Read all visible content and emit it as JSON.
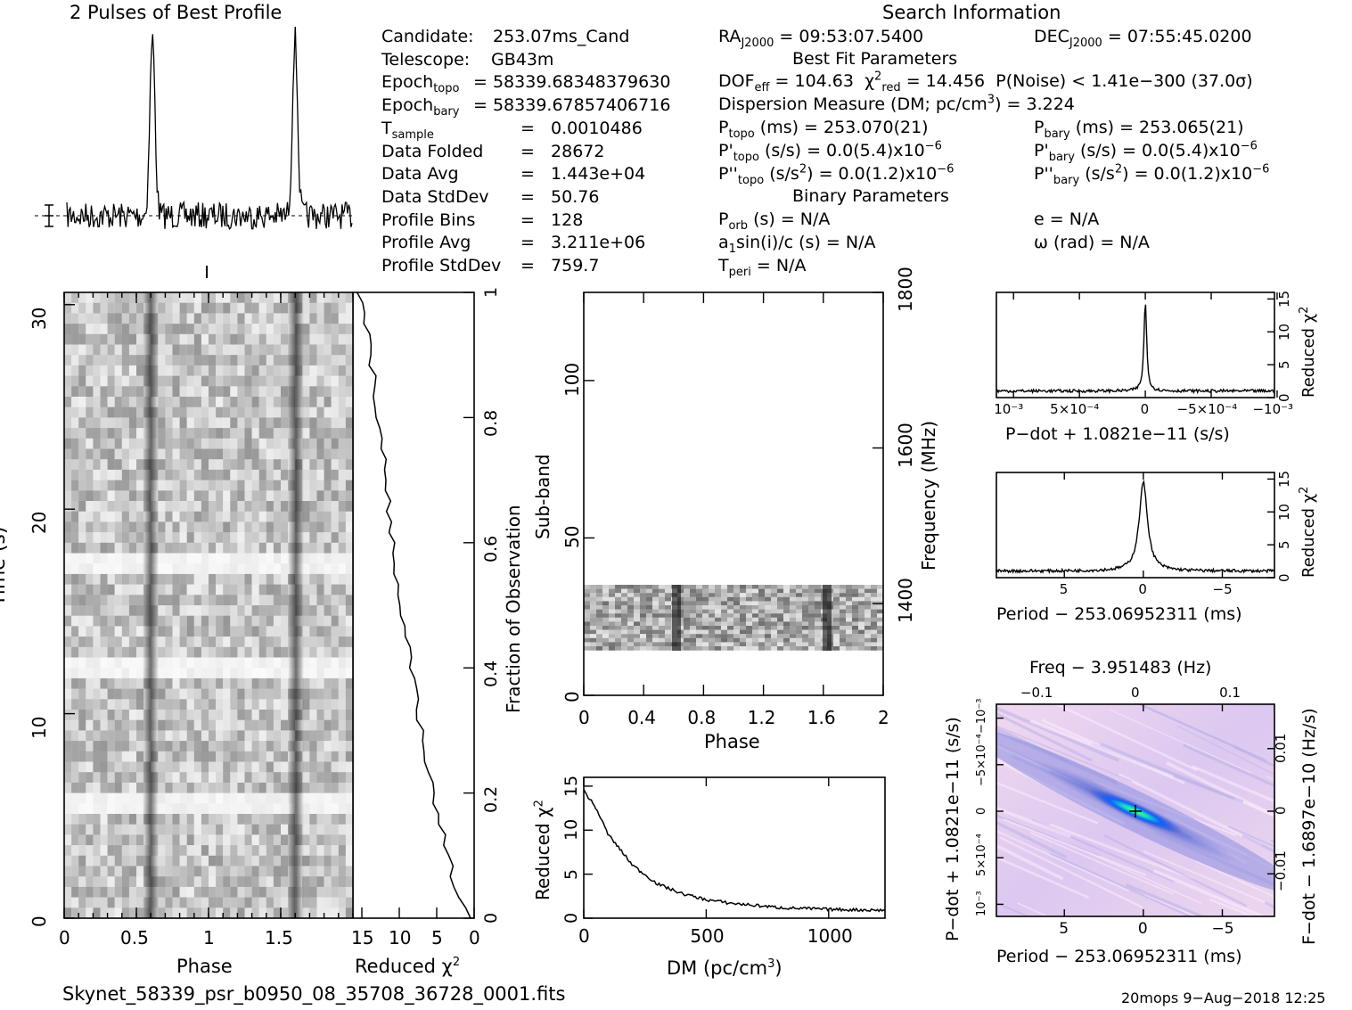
{
  "profile": {
    "title": "2 Pulses of Best Profile"
  },
  "search_info": {
    "title": "Search Information",
    "col1": [
      {
        "label": "Candidate:",
        "value": "253.07ms_Cand"
      },
      {
        "label": "Telescope:",
        "value": "GB43m"
      },
      {
        "label": "Epoch",
        "sub": "topo",
        "value": "= 58339.68348379630"
      },
      {
        "label": "Epoch",
        "sub": "bary",
        "value": "= 58339.67857406716"
      },
      {
        "label": "T",
        "sub": "sample",
        "value": "0.0010486"
      },
      {
        "label": "Data Folded",
        "value": "28672"
      },
      {
        "label": "Data Avg",
        "value": "1.443e+04"
      },
      {
        "label": "Data StdDev",
        "value": "50.76"
      },
      {
        "label": "Profile Bins",
        "value": "128"
      },
      {
        "label": "Profile Avg",
        "value": "3.211e+06"
      },
      {
        "label": "Profile StdDev",
        "value": "759.7"
      }
    ],
    "ra": "= 09:53:07.5400",
    "dec": "= 07:55:45.0200",
    "best_fit_title": "Best Fit Parameters",
    "dof": "= 104.63",
    "chi2": "= 14.456",
    "pnoise": "P(Noise) < 1.41e−300   (37.0σ)",
    "dm_label": "Dispersion Measure (DM; pc/cm",
    "dm_value": ") = 3.224",
    "ptopo": "(ms) =  253.070(21)",
    "pbary": "(ms) =  253.065(21)",
    "pdtopo": "(s/s) = 0.0(5.4)x10",
    "pdbary": "(s/s) = 0.0(5.4)x10",
    "pddtopo": "(s/s",
    "pddtopo2": ") = 0.0(1.2)x10",
    "pddbary": "(s/s",
    "pddbary2": ") = 0.0(1.2)x10",
    "exp": "−6",
    "binary_title": "Binary Parameters",
    "porb": "(s) = N/A",
    "a1": "a",
    "a1rest": "sin(i)/c (s) = N/A",
    "tperi": "= N/A",
    "ecc": "e = N/A",
    "omega": "ω (rad) = N/A"
  },
  "time_phase": {
    "ylabel": "Time (s)",
    "xlabel": "Phase",
    "yticks": [
      "0",
      "10",
      "20",
      "30"
    ],
    "xticks": [
      "0",
      "0.5",
      "1",
      "1.5"
    ]
  },
  "time_chi": {
    "xlabel": "Reduced χ",
    "xticks": [
      "15",
      "10",
      "5",
      "0"
    ],
    "ylabel": "Fraction of Observation",
    "yticks": [
      "0",
      "0.2",
      "0.4",
      "0.6",
      "0.8",
      "1"
    ]
  },
  "subband": {
    "ylabel": "Sub-band",
    "xlabel": "Phase",
    "yticks": [
      "0",
      "50",
      "100"
    ],
    "xticks": [
      "0",
      "0.4",
      "0.8",
      "1.2",
      "1.6",
      "2"
    ],
    "rlabel": "Frequency (MHz)",
    "rticks": [
      "1400",
      "1600",
      "1800"
    ]
  },
  "dm_plot": {
    "ylabel": "Reduced χ",
    "xlabel": "DM (pc/cm",
    "xticks": [
      "0",
      "500",
      "1000"
    ],
    "yticks": [
      "0",
      "5",
      "10",
      "15"
    ]
  },
  "pdot_plot": {
    "xlabel": "P−dot + 1.0821e−11 (s/s)",
    "ylabel": "Reduced χ",
    "yticks": [
      "0",
      "5",
      "10",
      "15"
    ],
    "xticks": [
      "10⁻³",
      "5×10⁻⁴",
      "0",
      "−5×10⁻⁴",
      "−10⁻³"
    ]
  },
  "period_plot": {
    "xlabel": "Period − 253.06952311 (ms)",
    "ylabel": "Reduced χ",
    "yticks": [
      "0",
      "5",
      "10",
      "15"
    ],
    "xticks": [
      "5",
      "0",
      "−5"
    ]
  },
  "ppdot_plot": {
    "toplabel": "Freq − 3.951483 (Hz)",
    "topticks": [
      "−0.1",
      "0",
      "0.1"
    ],
    "xlabel": "Period − 253.06952311 (ms)",
    "xticks": [
      "5",
      "0",
      "−5"
    ],
    "ylabel": "P−dot + 1.0821e−11 (s/s)",
    "yticks": [
      "10⁻³",
      "5×10⁻⁴",
      "0",
      "−5×10⁻⁴",
      "−10⁻³"
    ],
    "rlabel": "F−dot − 1.6897e−10 (Hz/s)",
    "rticks": [
      "−0.01",
      "0",
      "0.01"
    ]
  },
  "footer": {
    "filename": "Skynet_58339_psr_b0950_08_35708_36728_0001.fits",
    "stamp": "20mops   9−Aug−2018 12:25"
  },
  "chart_data": [
    {
      "type": "line",
      "name": "profile",
      "x": [
        0,
        0.6,
        1.0,
        1.6,
        2.0
      ],
      "peaks_phase": [
        0.6,
        1.6
      ],
      "ylim": [
        0,
        1
      ]
    },
    {
      "type": "line",
      "name": "dm_curve",
      "x": [
        0,
        50,
        100,
        200,
        300,
        400,
        500,
        600,
        800,
        1000,
        1230
      ],
      "y": [
        14.5,
        12.5,
        9.5,
        6.0,
        3.9,
        2.8,
        2.1,
        1.7,
        1.2,
        1.0,
        0.9
      ],
      "xlim": [
        0,
        1230
      ],
      "ylim": [
        0,
        16
      ]
    },
    {
      "type": "line",
      "name": "pdot_curve",
      "x": [
        -0.0011,
        -0.0005,
        -0.0001,
        0,
        0.0001,
        0.0005,
        0.0011
      ],
      "y": [
        1.0,
        1.5,
        4.0,
        14.5,
        4.0,
        1.3,
        1.0
      ],
      "ylim": [
        0,
        16
      ]
    },
    {
      "type": "line",
      "name": "period_curve",
      "x": [
        9,
        5,
        2,
        1,
        0,
        -1,
        -2,
        -5,
        -9
      ],
      "y": [
        1.0,
        1.2,
        2.5,
        5.0,
        14.5,
        5.0,
        2.5,
        1.2,
        1.0
      ],
      "ylim": [
        0,
        16
      ]
    },
    {
      "type": "line",
      "name": "time_chi_curve",
      "x": [
        15,
        14,
        12,
        10,
        8,
        6,
        4,
        2,
        0
      ],
      "y": [
        1.0,
        0.95,
        0.78,
        0.55,
        0.4,
        0.25,
        0.15,
        0.05,
        0.0
      ],
      "xlim": [
        15,
        0
      ],
      "ylim": [
        0,
        1
      ]
    }
  ]
}
